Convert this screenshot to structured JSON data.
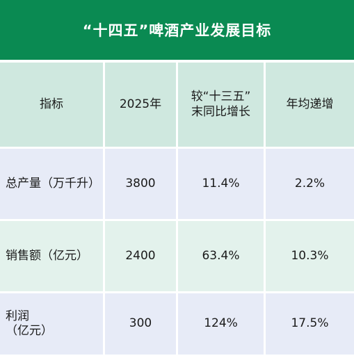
{
  "title": "“十四五”啤酒产业发展目标",
  "header": {
    "col1": "指标",
    "col2": "2025年",
    "col3": "较“十三五”\n末同比增长",
    "col4": "年均递增"
  },
  "rows": [
    {
      "indicator": "总产量（万千升）",
      "value_2025": "3800",
      "growth": "11.4%",
      "annual": "2.2%"
    },
    {
      "indicator": "销售额（亿元）",
      "value_2025": "2400",
      "growth": "63.4%",
      "annual": "10.3%"
    },
    {
      "indicator": "利润\n（亿元）",
      "value_2025": "300",
      "growth": "124%",
      "annual": "17.5%"
    }
  ],
  "colors": {
    "title_bg": "#0a8a52",
    "header_bg": "#cfe8df",
    "row_blue": "#e7ebf7",
    "row_green": "#e3f2ec"
  }
}
